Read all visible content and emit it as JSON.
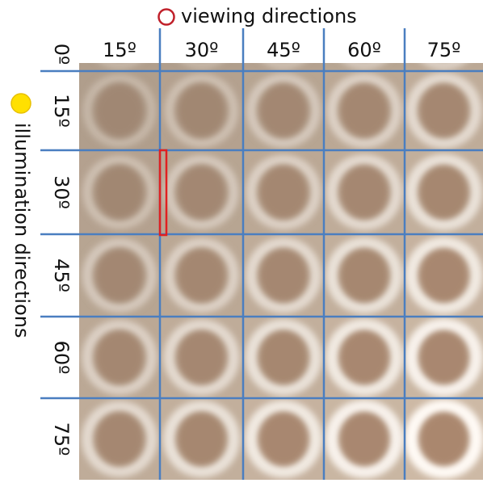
{
  "legend": {
    "viewing": "viewing directions",
    "illumination": "illumination directions"
  },
  "corner": "0º",
  "columns": [
    "15º",
    "30º",
    "45º",
    "60º",
    "75º"
  ],
  "rows": [
    "15º",
    "30º",
    "45º",
    "60º",
    "75º"
  ]
}
